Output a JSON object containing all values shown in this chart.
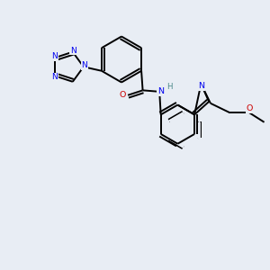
{
  "background_color": "#E8EDF4",
  "line_color": "#000000",
  "bond_width": 1.4,
  "fig_width": 3.0,
  "fig_height": 3.0,
  "dpi": 100,
  "blue": "#0000EE",
  "red": "#CC0000",
  "teal": "#4A8888",
  "xlim": [
    0,
    10
  ],
  "ylim": [
    0,
    10
  ]
}
